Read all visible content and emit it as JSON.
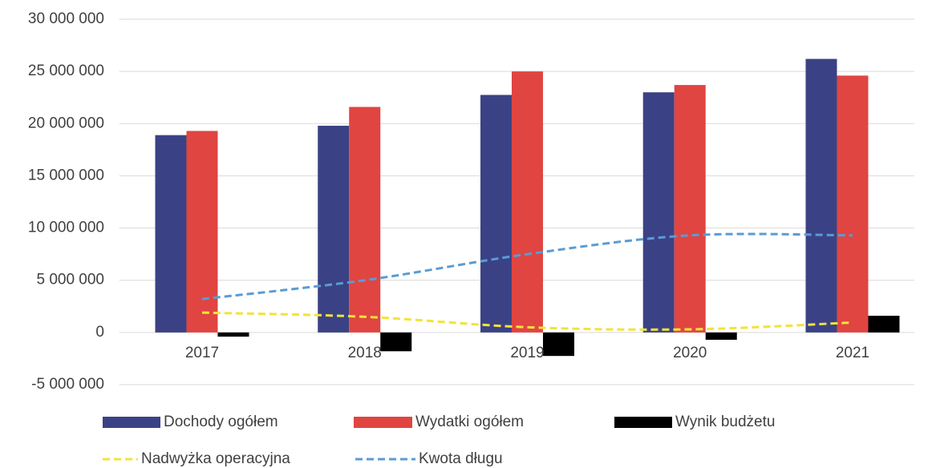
{
  "chart_data": {
    "type": "bar",
    "categories": [
      "2017",
      "2018",
      "2019",
      "2020",
      "2021"
    ],
    "series": [
      {
        "name": "Dochody ogółem",
        "color": "#3a4285",
        "values": [
          18900000,
          19800000,
          22750000,
          23000000,
          26200000
        ]
      },
      {
        "name": "Wydatki ogółem",
        "color": "#e04541",
        "values": [
          19300000,
          21600000,
          25000000,
          23700000,
          24600000
        ]
      },
      {
        "name": "Wynik budżetu",
        "color": "#000000",
        "values": [
          -400000,
          -1800000,
          -2250000,
          -700000,
          1600000
        ]
      },
      {
        "name": "Nadwyżka operacyjna",
        "color": "#f2e33a",
        "type": "line",
        "values": [
          1900000,
          1500000,
          500000,
          300000,
          950000
        ]
      },
      {
        "name": "Kwota długu",
        "color": "#5b9bd5",
        "type": "line",
        "values": [
          3200000,
          5000000,
          7500000,
          9300000,
          9300000
        ]
      }
    ],
    "ylim": [
      -5000000,
      30000000
    ],
    "yticks": [
      {
        "value": -5000000,
        "label": "-5 000 000"
      },
      0,
      {
        "value": 5000000,
        "label": "5 000 000"
      },
      {
        "value": 10000000,
        "label": "10 000 000"
      },
      {
        "value": 15000000,
        "label": "15 000 000"
      },
      {
        "value": 20000000,
        "label": "20 000 000"
      },
      {
        "value": 25000000,
        "label": "25 000 000"
      },
      {
        "value": 30000000,
        "label": "30 000 000"
      }
    ],
    "grid": true,
    "legend": "bottom"
  }
}
